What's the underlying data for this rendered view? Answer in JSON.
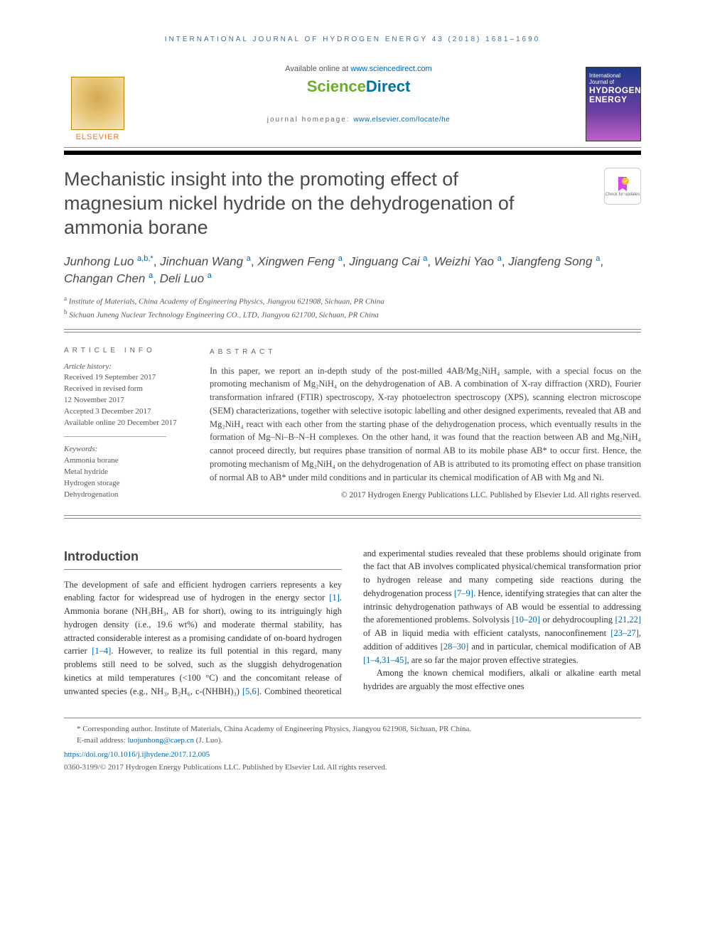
{
  "running_head": "INTERNATIONAL JOURNAL OF HYDROGEN ENERGY 43 (2018) 1681–1690",
  "header": {
    "available_prefix": "Available online at ",
    "available_link": "www.sciencedirect.com",
    "sd_brand_1": "Science",
    "sd_brand_2": "Direct",
    "homepage_prefix": "journal homepage: ",
    "homepage_link": "www.elsevier.com/locate/he",
    "elsevier_label": "ELSEVIER",
    "cover_small": "International Journal of",
    "cover_big1": "HYDROGEN",
    "cover_big2": "ENERGY"
  },
  "check_updates_label": "Check for updates",
  "title": "Mechanistic insight into the promoting effect of magnesium nickel hydride on the dehydrogenation of ammonia borane",
  "authors_html": "Junhong Luo <sup>a,b,*</sup><span class='sep'>,</span> Jinchuan Wang <sup>a</sup><span class='sep'>,</span> Xingwen Feng <sup>a</sup><span class='sep'>,</span> Jinguang Cai <sup>a</sup><span class='sep'>,</span> Weizhi Yao <sup>a</sup><span class='sep'>,</span> Jiangfeng Song <sup>a</sup><span class='sep'>,</span> Changan Chen <sup>a</sup><span class='sep'>,</span> Deli Luo <sup>a</sup>",
  "affiliations": [
    {
      "sup": "a",
      "text": "Institute of Materials, China Academy of Engineering Physics, Jiangyou 621908, Sichuan, PR China"
    },
    {
      "sup": "b",
      "text": "Sichuan Juneng Nuclear Technology Engineering CO., LTD, Jiangyou 621700, Sichuan, PR China"
    }
  ],
  "article_info": {
    "heading": "ARTICLE INFO",
    "history_label": "Article history:",
    "history": [
      "Received 19 September 2017",
      "Received in revised form",
      "12 November 2017",
      "Accepted 3 December 2017",
      "Available online 20 December 2017"
    ],
    "keywords_label": "Keywords:",
    "keywords": [
      "Ammonia borane",
      "Metal hydride",
      "Hydrogen storage",
      "Dehydrogenation"
    ]
  },
  "abstract": {
    "heading": "ABSTRACT",
    "text": "In this paper, we report an in-depth study of the post-milled 4AB/Mg₂NiH₄ sample, with a special focus on the promoting mechanism of Mg₂NiH₄ on the dehydrogenation of AB. A combination of X-ray diffraction (XRD), Fourier transformation infrared (FTIR) spectroscopy, X-ray photoelectron spectroscopy (XPS), scanning electron microscope (SEM) characterizations, together with selective isotopic labelling and other designed experiments, revealed that AB and Mg₂NiH₄ react with each other from the starting phase of the dehydrogenation process, which eventually results in the formation of Mg–Ni–B–N–H complexes. On the other hand, it was found that the reaction between AB and Mg₂NiH₄ cannot proceed directly, but requires phase transition of normal AB to its mobile phase AB* to occur first. Hence, the promoting mechanism of Mg₂NiH₄ on the dehydrogenation of AB is attributed to its promoting effect on phase transition of normal AB to AB* under mild conditions and in particular its chemical modification of AB with Mg and Ni.",
    "copyright": "© 2017 Hydrogen Energy Publications LLC. Published by Elsevier Ltd. All rights reserved."
  },
  "intro": {
    "heading": "Introduction",
    "p1_pre": "The development of safe and efficient hydrogen carriers represents a key enabling factor for widespread use of hydrogen in the energy sector ",
    "r1": "[1]",
    "p1_mid": ". Ammonia borane (NH₃BH₃, AB for short), owing to its intriguingly high hydrogen density (i.e., 19.6 wt%) and moderate thermal stability, has attracted considerable interest as a promising candidate of on-board hydrogen carrier ",
    "r2": "[1–4]",
    "p1_post": ". However, to realize its full potential in this regard, many problems still need to be solved, such as the sluggish dehydrogenation kinetics at mild temperatures (<100 °C) and the concomitant release of unwanted species (e.g., NH₃, B₂H₆, c-(NHBH)₃) ",
    "r3": "[5,6]",
    "p1_end": ". Combined theoretical and experimental studies revealed that these problems should originate from the fact that AB involves complicated physical/chemical transformation prior to hydrogen release and many competing side reactions during the dehydrogenation process ",
    "r4": "[7–9]",
    "p1_tail1": ". Hence, identifying strategies that can alter the intrinsic dehydrogenation pathways of AB would be essential to addressing the aforementioned problems. Solvolysis ",
    "r5": "[10–20]",
    "p1_tail2": " or dehydrocoupling ",
    "r6": "[21,22]",
    "p1_tail3": " of AB in liquid media with efficient catalysts, nanoconfinement ",
    "r7": "[23–27]",
    "p1_tail4": ", addition of additives ",
    "r8": "[28–30]",
    "p1_tail5": " and in particular, chemical modification of AB ",
    "r9": "[1–4,31–45]",
    "p1_tail6": ", are so far the major proven effective strategies.",
    "p2": "Among the known chemical modifiers, alkali or alkaline earth metal hydrides are arguably the most effective ones"
  },
  "footer": {
    "corr_label": "* Corresponding author. ",
    "corr_text": "Institute of Materials, China Academy of Engineering Physics, Jiangyou 621908, Sichuan, PR China.",
    "email_label": "E-mail address: ",
    "email": "luojunhong@caep.cn",
    "email_tail": " (J. Luo).",
    "doi": "https://doi.org/10.1016/j.ijhydene.2017.12.005",
    "issn": "0360-3199/© 2017 Hydrogen Energy Publications LLC. Published by Elsevier Ltd. All rights reserved."
  },
  "colors": {
    "link": "#0066b3",
    "running_head": "#3a6ea5",
    "elsevier_orange": "#e87722",
    "sd_green": "#6aad2d",
    "sd_blue": "#007398"
  }
}
